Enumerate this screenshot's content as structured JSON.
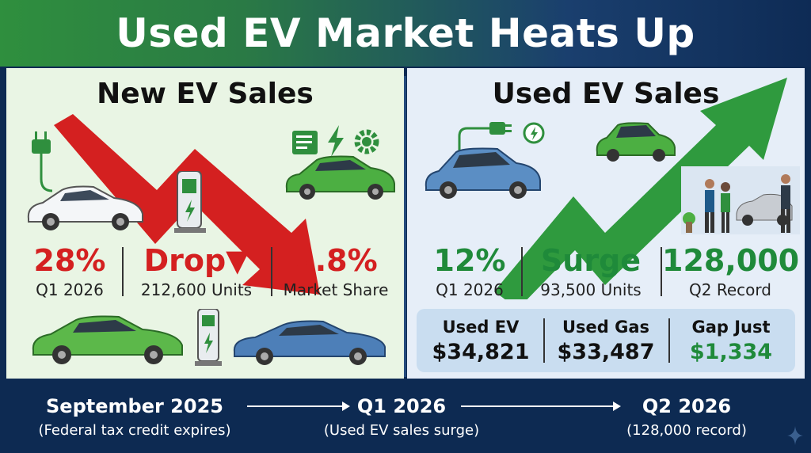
{
  "header": {
    "title": "Used EV Market Heats Up"
  },
  "left": {
    "title": "New EV Sales",
    "stats": [
      {
        "big": "28%",
        "small": "Q1 2026"
      },
      {
        "big": "Drop▼",
        "small": "212,600 Units"
      },
      {
        "big": "5.8%",
        "small": "Market Share"
      }
    ]
  },
  "right": {
    "title": "Used EV Sales",
    "stats": [
      {
        "big": "12%",
        "small": "Q1 2026"
      },
      {
        "big": "Surge",
        "small": "93,500 Units"
      },
      {
        "big": "128,000",
        "small": "Q2 Record"
      }
    ],
    "compare": [
      {
        "label": "Used EV",
        "value": "$34,821"
      },
      {
        "label": "Used Gas",
        "value": "$33,487"
      },
      {
        "label": "Gap Just",
        "value": "$1,334"
      }
    ]
  },
  "timeline": [
    {
      "title": "September 2025",
      "sub": "(Federal tax credit expires)"
    },
    {
      "title": "Q1 2026",
      "sub": "(Used EV sales surge)"
    },
    {
      "title": "Q2 2026",
      "sub": "(128,000 record)"
    }
  ],
  "colors": {
    "red": "#d42020",
    "green": "#1f8a3a",
    "navy": "#0d2a52"
  }
}
